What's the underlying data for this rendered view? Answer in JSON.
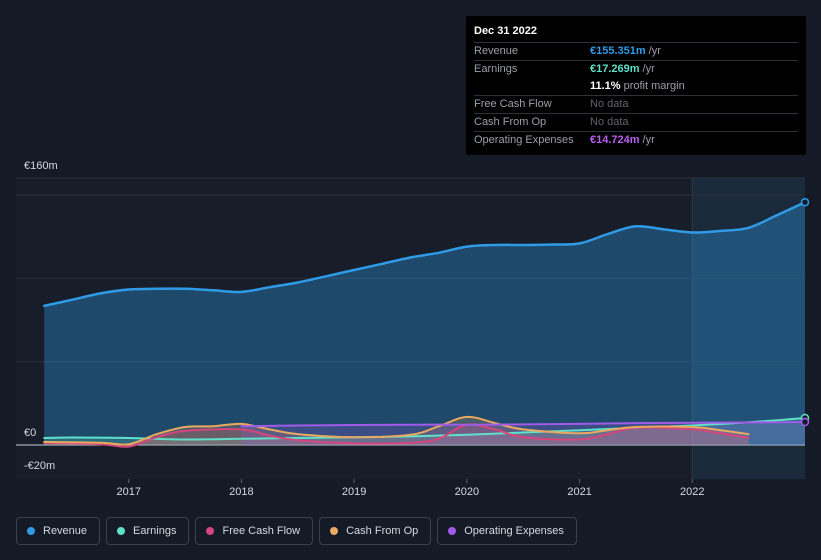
{
  "tooltip": {
    "date": "Dec 31 2022",
    "rows": [
      {
        "label": "Revenue",
        "value": "€155.351m",
        "suffix": "/yr",
        "color": "#2f9ae6"
      },
      {
        "label": "Earnings",
        "value": "€17.269m",
        "suffix": "/yr",
        "color": "#60e0c8"
      },
      {
        "label": "",
        "value": "11.1%",
        "suffix": "profit margin",
        "color": "#ffffff"
      },
      {
        "label": "Free Cash Flow",
        "value": "No data",
        "suffix": "",
        "color": "#5f656e"
      },
      {
        "label": "Cash From Op",
        "value": "No data",
        "suffix": "",
        "color": "#5f656e"
      },
      {
        "label": "Operating Expenses",
        "value": "€14.724m",
        "suffix": "/yr",
        "color": "#b760f0"
      }
    ]
  },
  "legend": [
    {
      "label": "Revenue",
      "color": "#2f9ae6"
    },
    {
      "label": "Earnings",
      "color": "#60e0c8"
    },
    {
      "label": "Free Cash Flow",
      "color": "#d6457d"
    },
    {
      "label": "Cash From Op",
      "color": "#e8a960"
    },
    {
      "label": "Operating Expenses",
      "color": "#a05be8"
    }
  ],
  "chart_data": {
    "type": "area",
    "ylim": [
      -20,
      160
    ],
    "y_ticks": [
      {
        "value": 160,
        "label": "€160m"
      },
      {
        "value": 0,
        "label": "€0"
      },
      {
        "value": -20,
        "label": "-€20m"
      }
    ],
    "x_range": [
      2016.0,
      2023.0
    ],
    "x_ticks": [
      {
        "value": 2017,
        "label": "2017"
      },
      {
        "value": 2018,
        "label": "2018"
      },
      {
        "value": 2019,
        "label": "2019"
      },
      {
        "value": 2020,
        "label": "2020"
      },
      {
        "value": 2021,
        "label": "2021"
      },
      {
        "value": 2022,
        "label": "2022"
      }
    ],
    "highlight_from": 2022.0,
    "series": [
      {
        "name": "Revenue",
        "color": "#2f9ae6",
        "x": [
          2016.25,
          2016.5,
          2016.75,
          2017.0,
          2017.25,
          2017.5,
          2017.75,
          2018.0,
          2018.25,
          2018.5,
          2018.75,
          2019.0,
          2019.25,
          2019.5,
          2019.75,
          2020.0,
          2020.25,
          2020.5,
          2020.75,
          2021.0,
          2021.25,
          2021.5,
          2021.75,
          2022.0,
          2022.25,
          2022.5,
          2022.75,
          2023.0
        ],
        "values": [
          89,
          93,
          97,
          99.5,
          100,
          100,
          99,
          98,
          101,
          104,
          108,
          112,
          116,
          120,
          123,
          127,
          128,
          128,
          128.3,
          129,
          135,
          140,
          138,
          136,
          137,
          139,
          147,
          155.4
        ]
      },
      {
        "name": "Earnings",
        "color": "#60e0c8",
        "x": [
          2016.25,
          2016.5,
          2017.0,
          2017.5,
          2018.0,
          2018.5,
          2019.0,
          2019.5,
          2020.0,
          2020.5,
          2021.0,
          2021.5,
          2022.0,
          2022.5,
          2023.0
        ],
        "values": [
          4.5,
          4.8,
          4.5,
          3.5,
          4,
          4.5,
          5,
          5.5,
          6.5,
          8,
          9.5,
          11,
          12.5,
          14.5,
          17.3
        ]
      },
      {
        "name": "Free Cash Flow",
        "color": "#d6457d",
        "x": [
          2016.25,
          2016.75,
          2017.0,
          2017.25,
          2017.5,
          2018.0,
          2018.25,
          2018.5,
          2019.0,
          2019.5,
          2019.75,
          2020.0,
          2020.25,
          2020.5,
          2021.0,
          2021.25,
          2021.5,
          2022.0,
          2022.25,
          2022.5
        ],
        "values": [
          1.5,
          0.5,
          -1,
          5,
          9,
          10,
          6,
          3,
          1,
          1.5,
          4,
          13,
          10,
          5,
          3.5,
          7,
          11,
          10,
          7.5,
          4.5
        ]
      },
      {
        "name": "Cash From Op",
        "color": "#e8a960",
        "x": [
          2016.25,
          2016.75,
          2017.0,
          2017.25,
          2017.5,
          2017.75,
          2018.0,
          2018.25,
          2018.5,
          2019.0,
          2019.5,
          2019.75,
          2020.0,
          2020.25,
          2020.5,
          2021.0,
          2021.25,
          2021.5,
          2022.0,
          2022.25,
          2022.5
        ],
        "values": [
          2,
          1.5,
          0.5,
          7,
          11.5,
          12,
          13.5,
          10,
          7,
          5,
          6.5,
          12,
          18,
          14,
          10,
          7.5,
          9.5,
          11.5,
          11.5,
          9.5,
          7
        ]
      },
      {
        "name": "Operating Expenses",
        "color": "#a05be8",
        "x": [
          2018.0,
          2018.5,
          2019.0,
          2019.5,
          2020.0,
          2020.5,
          2021.0,
          2021.5,
          2022.0,
          2022.5,
          2023.0
        ],
        "values": [
          12,
          12.5,
          12.8,
          13,
          13,
          13.2,
          13.5,
          14,
          14.2,
          14.4,
          14.7
        ]
      }
    ]
  }
}
